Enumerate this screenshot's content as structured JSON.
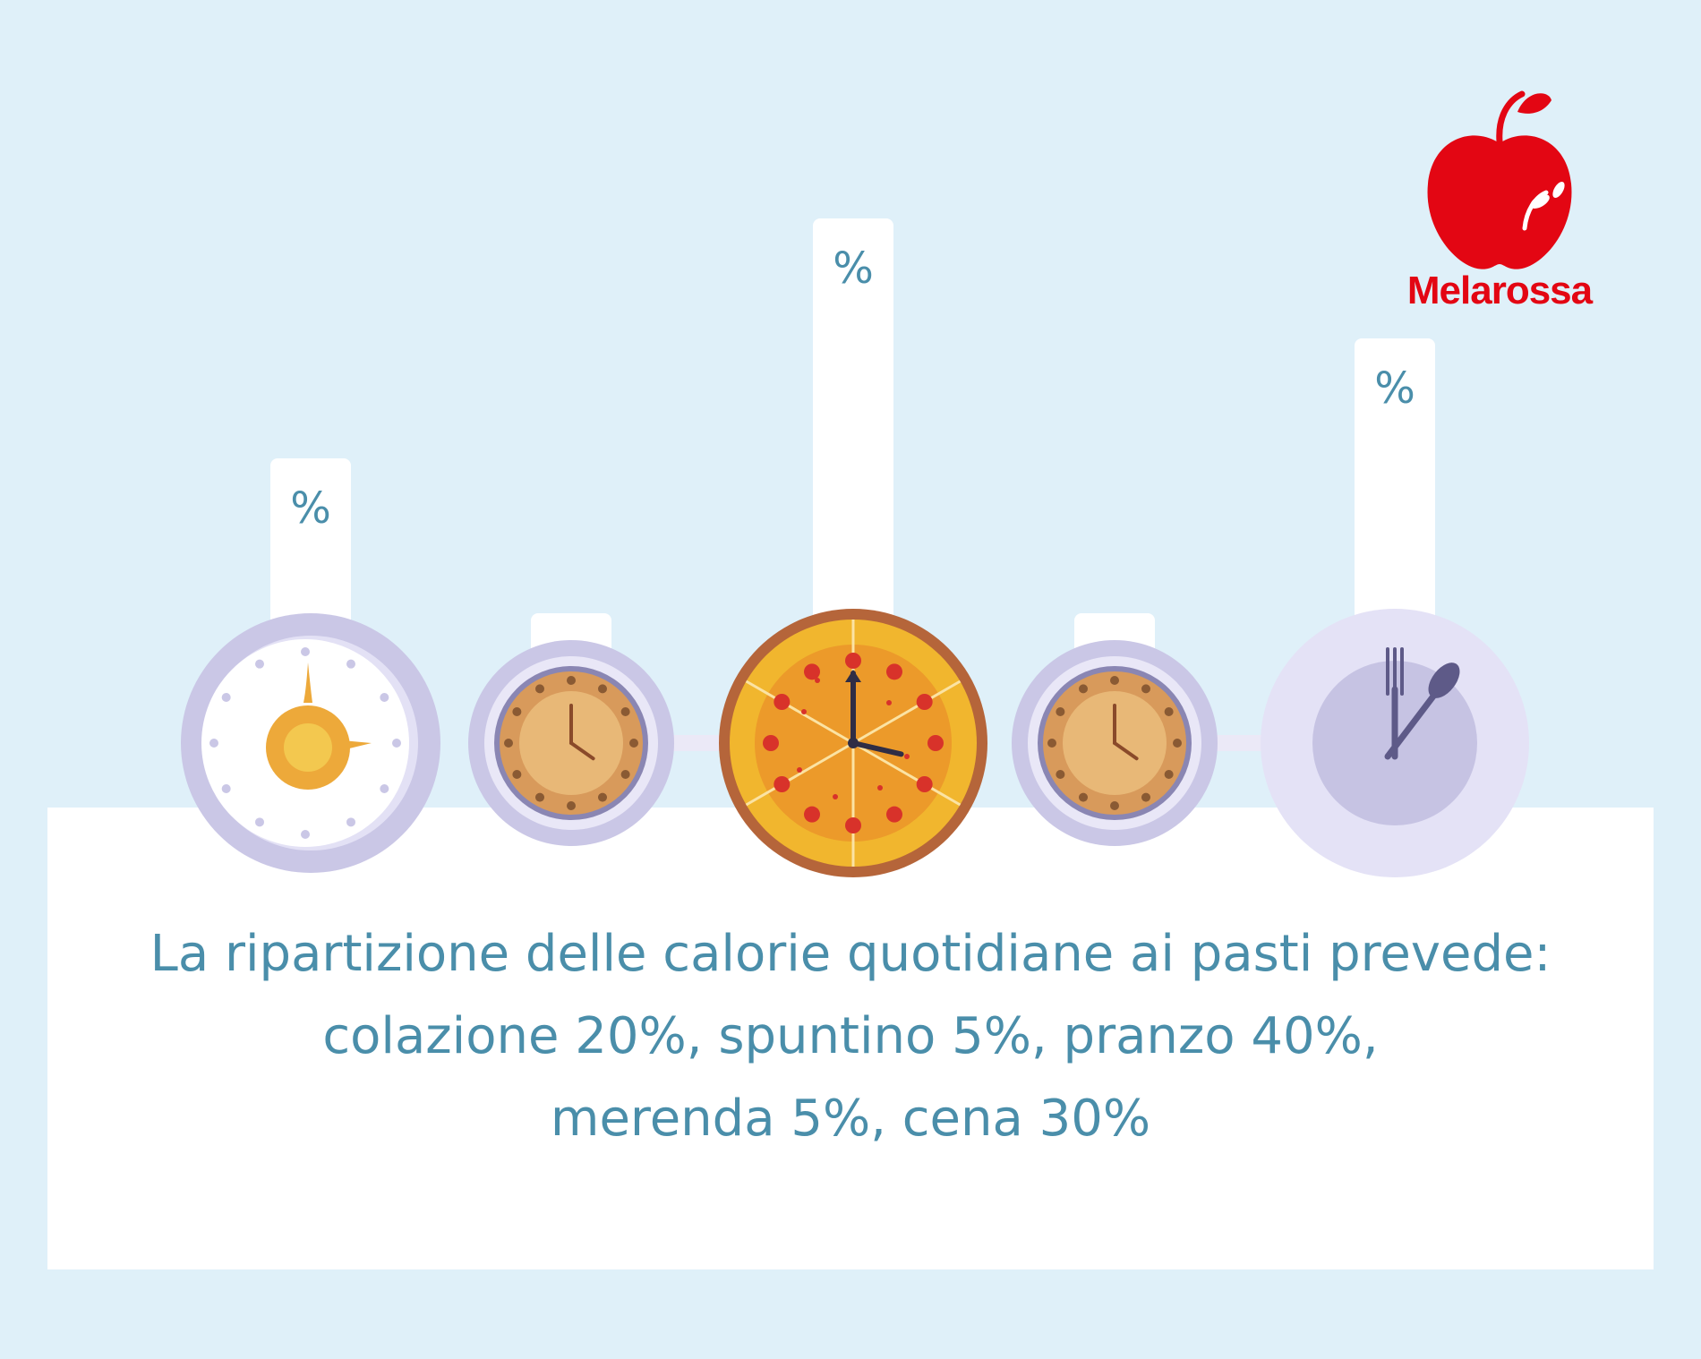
{
  "chart_data": {
    "type": "bar",
    "categories": [
      "colazione",
      "spuntino",
      "pranzo",
      "merenda",
      "cena"
    ],
    "values": [
      20,
      5,
      40,
      5,
      30
    ],
    "unit": "%",
    "bar_label": "%",
    "icons": [
      "egg-timer-icon",
      "coffee-cup-clock-icon",
      "pizza-clock-icon",
      "coffee-cup-clock-icon",
      "plate-fork-spoon-clock-icon"
    ]
  },
  "caption": {
    "line1": "La ripartizione delle calorie quotidiane ai pasti prevede:",
    "line2": "colazione 20%, spuntino 5%, pranzo 40%,",
    "line3": "merenda 5%, cena 30%"
  },
  "brand": {
    "name": "Melarossa",
    "color": "#e30613"
  },
  "colors": {
    "background": "#dff0f9",
    "panel": "#ffffff",
    "label": "#4a8eaa",
    "lavender": "#cac7e6",
    "pizza_crust": "#b5653a",
    "pizza_cheese": "#f1b62e",
    "coffee": "#d89a5b"
  }
}
